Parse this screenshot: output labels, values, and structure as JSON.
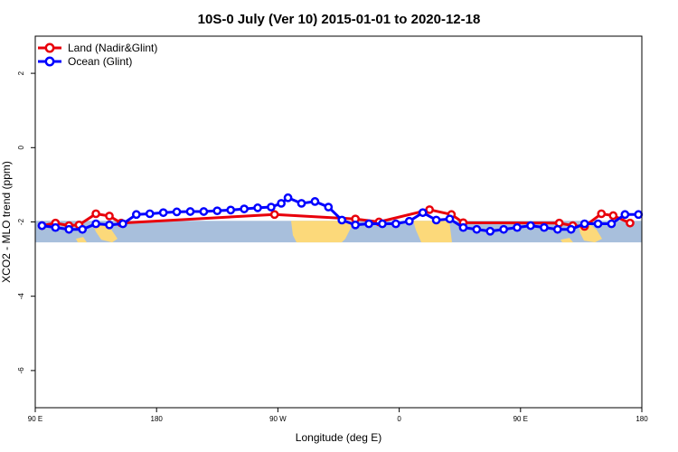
{
  "chart_data": {
    "type": "line",
    "title": "10S-0 July (Ver 10)   2015-01-01 to 2020-12-18",
    "xlabel": "Longitude (deg E)",
    "ylabel": "XCO2 - MLO trend (ppm)",
    "xlim": [
      90,
      450
    ],
    "ylim": [
      -7,
      3
    ],
    "x_ticks": [
      {
        "value": 90,
        "label": "90 E"
      },
      {
        "value": 162,
        "label": "180"
      },
      {
        "value": 234,
        "label": "90 W"
      },
      {
        "value": 306,
        "label": "0"
      },
      {
        "value": 378,
        "label": "90 E"
      },
      {
        "value": 450,
        "label": "180"
      }
    ],
    "y_ticks": [
      {
        "value": 2,
        "label": "2"
      },
      {
        "value": 0,
        "label": "0"
      },
      {
        "value": -2,
        "label": "-2"
      },
      {
        "value": -4,
        "label": "-4"
      },
      {
        "value": -6,
        "label": "-6"
      }
    ],
    "grid": false,
    "legend_position": "top-left",
    "map_strip": {
      "y_top": -1.97,
      "y_bottom": -2.55,
      "ocean_color": "#a8bfdc",
      "land_color": "#fcd97a"
    },
    "series": [
      {
        "name": "Land (Nadir&Glint)",
        "color": "#e8000b",
        "x": [
          94,
          102,
          110,
          116,
          126,
          134,
          141,
          232,
          280,
          294,
          324,
          337,
          344,
          401,
          409,
          416,
          426,
          433,
          443
        ],
        "y": [
          -2.1,
          -2.03,
          -2.1,
          -2.08,
          -1.78,
          -1.84,
          -2.03,
          -1.8,
          -1.92,
          -2.0,
          -1.67,
          -1.8,
          -2.02,
          -2.03,
          -2.1,
          -2.12,
          -1.78,
          -1.83,
          -2.03
        ]
      },
      {
        "name": "Ocean (Glint)",
        "color": "#0000ff",
        "x": [
          94,
          102,
          110,
          118,
          126,
          134,
          142,
          150,
          158,
          166,
          174,
          182,
          190,
          198,
          206,
          214,
          222,
          230,
          236,
          240,
          248,
          256,
          264,
          272,
          280,
          288,
          296,
          304,
          312,
          320,
          328,
          336,
          344,
          352,
          360,
          368,
          376,
          384,
          392,
          400,
          408,
          416,
          424,
          432,
          440,
          448
        ],
        "y": [
          -2.1,
          -2.15,
          -2.2,
          -2.2,
          -2.05,
          -2.08,
          -2.05,
          -1.8,
          -1.78,
          -1.75,
          -1.73,
          -1.72,
          -1.72,
          -1.7,
          -1.68,
          -1.65,
          -1.62,
          -1.6,
          -1.5,
          -1.35,
          -1.5,
          -1.45,
          -1.6,
          -1.95,
          -2.08,
          -2.05,
          -2.05,
          -2.05,
          -1.98,
          -1.75,
          -1.95,
          -1.92,
          -2.15,
          -2.2,
          -2.25,
          -2.2,
          -2.15,
          -2.1,
          -2.15,
          -2.2,
          -2.2,
          -2.05,
          -2.05,
          -2.05,
          -1.8,
          -1.8
        ]
      }
    ]
  }
}
